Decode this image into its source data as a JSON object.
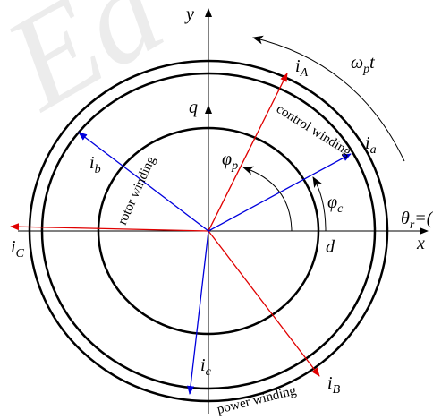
{
  "watermark": "Ea",
  "axes": {
    "x": "x",
    "y": "y",
    "q": "q",
    "d": "d"
  },
  "currents": [
    {
      "main": "i",
      "sub": "A"
    },
    {
      "main": "i",
      "sub": "a"
    },
    {
      "main": "i",
      "sub": "b"
    },
    {
      "main": "i",
      "sub": "C"
    },
    {
      "main": "i",
      "sub": "c"
    },
    {
      "main": "i",
      "sub": "B"
    }
  ],
  "angles": {
    "omega": {
      "main": "ω",
      "sub": "p",
      "tail": "t"
    },
    "theta": {
      "main": "θ",
      "sub": "r",
      "tail": "=("
    },
    "phi_p": {
      "main": "φ",
      "sub": "p"
    },
    "phi_c": {
      "main": "φ",
      "sub": "c"
    }
  },
  "windings": {
    "control": "control winding",
    "rotor": "rotor winding",
    "power": "power winding"
  }
}
